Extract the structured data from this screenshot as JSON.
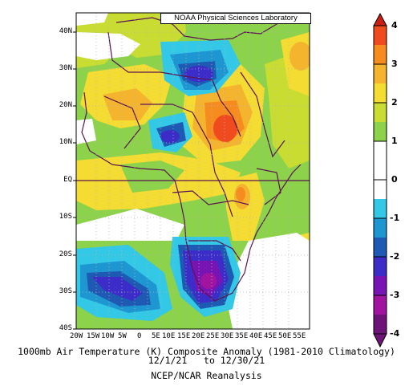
{
  "credit": "NOAA Physical Sciences Laboratory",
  "title": "1000mb Air Temperature (K) Composite Anomaly (1981-2010 Climatology)",
  "period": "12/1/21   to 12/30/21",
  "source": "NCEP/NCAR Reanalysis",
  "axes": {
    "lat_labels": [
      "40N",
      "30N",
      "20N",
      "10N",
      "EQ",
      "10S",
      "20S",
      "30S",
      "40S"
    ],
    "lon_labels": [
      "20W",
      "15W",
      "10W",
      "5W",
      "0",
      "5E",
      "10E",
      "15E",
      "20E",
      "25E",
      "30E",
      "35E",
      "40E",
      "45E",
      "50E",
      "55E"
    ]
  },
  "colorbar": {
    "labels": [
      "4",
      "3",
      "2",
      "1",
      "0",
      "-1",
      "-2",
      "-3",
      "-4"
    ],
    "bins": [
      {
        "range": "3.5 to 4",
        "color": "#c81e14"
      },
      {
        "range": "3 to 3.5",
        "color": "#f04b1e"
      },
      {
        "range": "2.5 to 3",
        "color": "#f68c1e"
      },
      {
        "range": "2 to 2.5",
        "color": "#f5b42d"
      },
      {
        "range": "1.5 to 2",
        "color": "#f5dc32"
      },
      {
        "range": "1 to 1.5",
        "color": "#c8dc32"
      },
      {
        "range": "0.5 to 1",
        "color": "#8cd24b"
      },
      {
        "range": "0 to 0.5",
        "color": "#ffffff"
      },
      {
        "range": "-0.5 to 0",
        "color": "#ffffff"
      },
      {
        "range": "-1 to -0.5",
        "color": "#32c8e6"
      },
      {
        "range": "-1.5 to -1",
        "color": "#1e96d2"
      },
      {
        "range": "-2 to -1.5",
        "color": "#1e5ab4"
      },
      {
        "range": "-2.5 to -2",
        "color": "#3c2dc8"
      },
      {
        "range": "-3 to -2.5",
        "color": "#7814b4"
      },
      {
        "range": "-3.5 to -3",
        "color": "#a014a0"
      },
      {
        "range": "-4 to -3.5",
        "color": "#6e1478"
      }
    ]
  }
}
